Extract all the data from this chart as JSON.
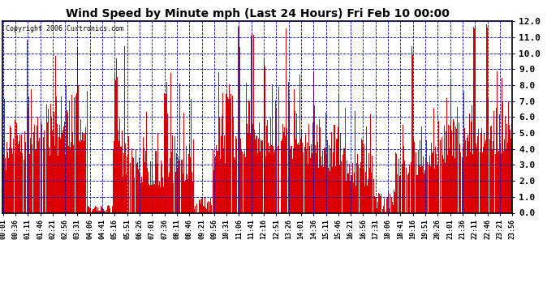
{
  "title": "Wind Speed by Minute mph (Last 24 Hours) Fri Feb 10 00:00",
  "copyright": "Copyright 2006 Curtronics.com",
  "ylim": [
    0.0,
    12.0
  ],
  "yticks": [
    0.0,
    1.0,
    2.0,
    3.0,
    4.0,
    5.0,
    6.0,
    7.0,
    8.0,
    9.0,
    10.0,
    11.0,
    12.0
  ],
  "bar_color": "#dd0000",
  "grid_color": "#0000bb",
  "background_color": "#ffffff",
  "border_color": "#000000",
  "num_minutes": 1440,
  "x_tick_labels": [
    "00:01",
    "00:36",
    "01:11",
    "01:46",
    "02:21",
    "02:56",
    "03:31",
    "04:06",
    "04:41",
    "05:16",
    "05:51",
    "06:26",
    "07:01",
    "07:36",
    "08:11",
    "08:46",
    "09:21",
    "09:56",
    "10:31",
    "11:06",
    "11:41",
    "12:16",
    "12:51",
    "13:26",
    "14:01",
    "14:36",
    "15:11",
    "15:46",
    "16:21",
    "16:56",
    "17:31",
    "18:06",
    "18:41",
    "19:16",
    "19:51",
    "20:26",
    "21:01",
    "21:36",
    "22:11",
    "22:46",
    "23:21",
    "23:56"
  ],
  "seed": 42
}
